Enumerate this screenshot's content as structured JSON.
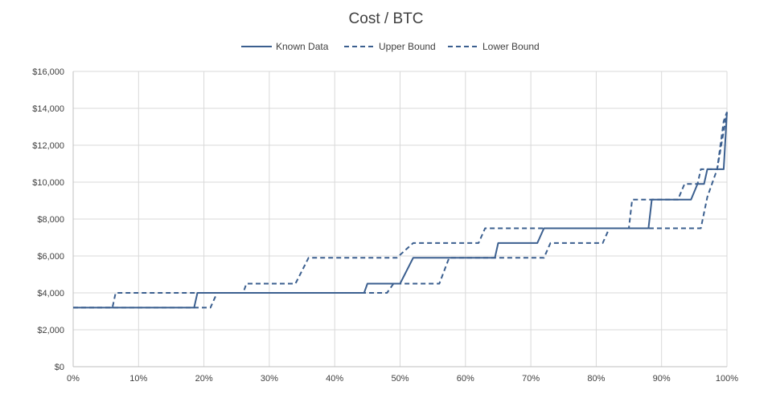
{
  "chart_data": {
    "type": "line",
    "title": "Cost / BTC",
    "xlabel": "",
    "ylabel": "",
    "xlim": [
      0,
      100
    ],
    "ylim": [
      0,
      16000
    ],
    "x_ticks": [
      0,
      10,
      20,
      30,
      40,
      50,
      60,
      70,
      80,
      90,
      100
    ],
    "x_tick_labels": [
      "0%",
      "10%",
      "20%",
      "30%",
      "40%",
      "50%",
      "60%",
      "70%",
      "80%",
      "90%",
      "100%"
    ],
    "y_ticks": [
      0,
      2000,
      4000,
      6000,
      8000,
      10000,
      12000,
      14000,
      16000
    ],
    "y_tick_labels": [
      "$0",
      "$2,000",
      "$4,000",
      "$6,000",
      "$8,000",
      "$10,000",
      "$12,000",
      "$14,000",
      "$16,000"
    ],
    "grid": true,
    "legend_position": "top-center",
    "series_color": "#3b5f8f",
    "series": [
      {
        "name": "Known Data",
        "style": "solid",
        "points": [
          [
            0,
            3200
          ],
          [
            18.5,
            3200
          ],
          [
            19,
            4000
          ],
          [
            44.5,
            4000
          ],
          [
            45,
            4500
          ],
          [
            50,
            4500
          ],
          [
            52,
            5900
          ],
          [
            64.5,
            5900
          ],
          [
            65,
            6700
          ],
          [
            71,
            6700
          ],
          [
            72,
            7500
          ],
          [
            88,
            7500
          ],
          [
            88.5,
            9050
          ],
          [
            94.5,
            9050
          ],
          [
            95.5,
            9900
          ],
          [
            96.5,
            9900
          ],
          [
            97,
            10700
          ],
          [
            99.5,
            10700
          ],
          [
            100,
            13800
          ]
        ]
      },
      {
        "name": "Upper Bound",
        "style": "dashed",
        "points": [
          [
            0,
            3200
          ],
          [
            6,
            3200
          ],
          [
            6.5,
            4000
          ],
          [
            26,
            4000
          ],
          [
            26.5,
            4500
          ],
          [
            34,
            4500
          ],
          [
            36,
            5900
          ],
          [
            49.5,
            5900
          ],
          [
            52,
            6700
          ],
          [
            62,
            6700
          ],
          [
            63,
            7500
          ],
          [
            85,
            7500
          ],
          [
            85.5,
            9050
          ],
          [
            92.5,
            9050
          ],
          [
            93.5,
            9900
          ],
          [
            95.5,
            9900
          ],
          [
            96,
            10700
          ],
          [
            98.5,
            10700
          ],
          [
            99.5,
            13300
          ],
          [
            100,
            13800
          ]
        ]
      },
      {
        "name": "Lower Bound",
        "style": "dashed",
        "points": [
          [
            0,
            3200
          ],
          [
            21,
            3200
          ],
          [
            22,
            4000
          ],
          [
            48,
            4000
          ],
          [
            49,
            4500
          ],
          [
            56,
            4500
          ],
          [
            57.5,
            5900
          ],
          [
            72,
            5900
          ],
          [
            73,
            6700
          ],
          [
            81,
            6700
          ],
          [
            82,
            7500
          ],
          [
            96,
            7500
          ],
          [
            97,
            9200
          ],
          [
            98.5,
            10700
          ],
          [
            100,
            13800
          ]
        ]
      }
    ]
  }
}
